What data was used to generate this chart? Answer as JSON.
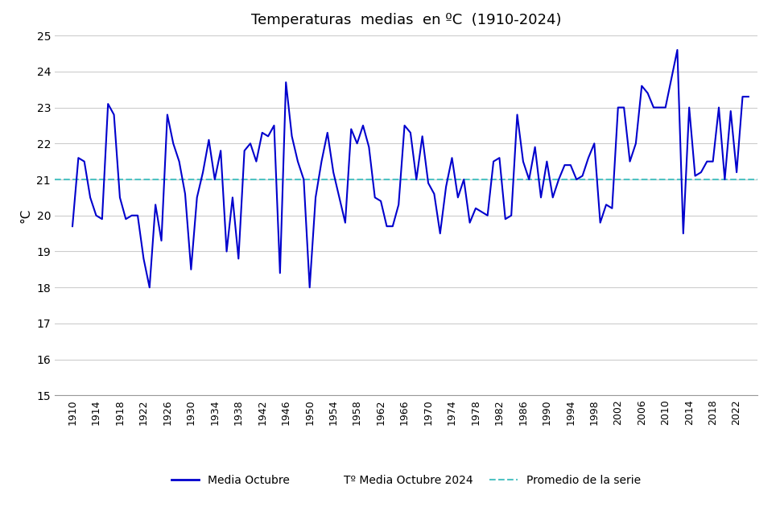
{
  "title": "Temperaturas  medias  en ºC  (1910-2024)",
  "ylabel": "°C",
  "ylim": [
    15,
    25
  ],
  "yticks": [
    15,
    16,
    17,
    18,
    19,
    20,
    21,
    22,
    23,
    24,
    25
  ],
  "promedio": 21.0,
  "line_color": "#0000CD",
  "promedio_color": "#4FC3C3",
  "legend_labels": [
    "Media Octubre",
    "Tº Media Octubre 2024",
    "Promedio de la serie"
  ],
  "years": [
    1910,
    1911,
    1912,
    1913,
    1914,
    1915,
    1916,
    1917,
    1918,
    1919,
    1920,
    1921,
    1922,
    1923,
    1924,
    1925,
    1926,
    1927,
    1928,
    1929,
    1930,
    1931,
    1932,
    1933,
    1934,
    1935,
    1936,
    1937,
    1938,
    1939,
    1940,
    1941,
    1942,
    1943,
    1944,
    1945,
    1946,
    1947,
    1948,
    1949,
    1950,
    1951,
    1952,
    1953,
    1954,
    1955,
    1956,
    1957,
    1958,
    1959,
    1960,
    1961,
    1962,
    1963,
    1964,
    1965,
    1966,
    1967,
    1968,
    1969,
    1970,
    1971,
    1972,
    1973,
    1974,
    1975,
    1976,
    1977,
    1978,
    1979,
    1980,
    1981,
    1982,
    1983,
    1984,
    1985,
    1986,
    1987,
    1988,
    1989,
    1990,
    1991,
    1992,
    1993,
    1994,
    1995,
    1996,
    1997,
    1998,
    1999,
    2000,
    2001,
    2002,
    2003,
    2004,
    2005,
    2006,
    2007,
    2008,
    2009,
    2010,
    2011,
    2012,
    2013,
    2014,
    2015,
    2016,
    2017,
    2018,
    2019,
    2020,
    2021,
    2022,
    2023,
    2024
  ],
  "values": [
    19.7,
    21.6,
    21.5,
    20.5,
    20.0,
    19.9,
    23.1,
    22.8,
    20.5,
    19.9,
    20.0,
    20.0,
    18.8,
    18.0,
    20.3,
    19.3,
    22.8,
    22.0,
    21.5,
    20.6,
    18.5,
    20.5,
    21.2,
    22.1,
    21.0,
    21.8,
    19.0,
    20.5,
    18.8,
    21.8,
    22.0,
    21.5,
    22.3,
    22.2,
    22.5,
    18.4,
    23.7,
    22.2,
    21.5,
    21.0,
    18.0,
    20.5,
    21.5,
    22.3,
    21.2,
    20.5,
    19.8,
    22.4,
    22.0,
    22.5,
    21.9,
    20.5,
    20.4,
    19.7,
    19.7,
    20.3,
    22.5,
    22.3,
    21.0,
    22.2,
    20.9,
    20.6,
    19.5,
    20.8,
    21.6,
    20.5,
    21.0,
    19.8,
    20.2,
    20.1,
    20.0,
    21.5,
    21.6,
    19.9,
    20.0,
    22.8,
    21.5,
    21.0,
    21.9,
    20.5,
    21.5,
    20.5,
    21.0,
    21.4,
    21.4,
    21.0,
    21.1,
    21.6,
    22.0,
    19.8,
    20.3,
    20.2,
    23.0,
    23.0,
    21.5,
    22.0,
    23.6,
    23.4,
    23.0,
    23.0,
    23.0,
    23.8,
    24.6,
    19.5,
    23.0,
    21.1,
    21.2,
    21.5,
    21.5,
    23.0,
    21.0,
    22.9,
    21.2,
    23.3,
    23.3
  ]
}
